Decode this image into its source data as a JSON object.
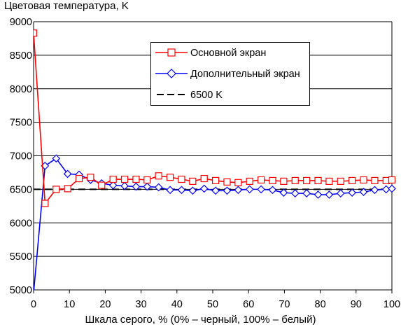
{
  "chart_data": {
    "type": "line",
    "title": "Цветовая температура, K",
    "xlabel": "Шкала серого, % (0% – черный, 100% – белый)",
    "ylabel": "",
    "xlim": [
      0,
      100
    ],
    "ylim": [
      5000,
      9000
    ],
    "x_ticks": [
      "0",
      "10",
      "20",
      "30",
      "40",
      "50",
      "60",
      "70",
      "80",
      "90",
      "100"
    ],
    "y_ticks": [
      "5000",
      "5500",
      "6000",
      "6500",
      "7000",
      "7500",
      "8000",
      "8500",
      "9000"
    ],
    "grid": "horizontal",
    "legend_position": "top-right",
    "x": [
      0,
      3.2,
      6.3,
      9.5,
      12.7,
      15.9,
      19,
      22.2,
      25.4,
      28.6,
      31.7,
      34.9,
      38.1,
      41.3,
      44.4,
      47.6,
      50.8,
      54,
      57.1,
      60.3,
      63.5,
      66.7,
      69.8,
      73,
      76.2,
      79.4,
      82.5,
      85.7,
      88.9,
      92.1,
      95.2,
      98.4,
      100
    ],
    "series": [
      {
        "name": "Основной экран",
        "color": "#ff0000",
        "marker": "square",
        "values": [
          8830,
          6290,
          6500,
          6510,
          6660,
          6680,
          6560,
          6650,
          6650,
          6650,
          6640,
          6700,
          6680,
          6650,
          6620,
          6660,
          6630,
          6610,
          6600,
          6620,
          6640,
          6630,
          6620,
          6630,
          6630,
          6630,
          6620,
          6620,
          6630,
          6640,
          6630,
          6630,
          6640
        ]
      },
      {
        "name": "Дополнительный экран",
        "color": "#0000ff",
        "marker": "diamond",
        "values": [
          4950,
          6850,
          6960,
          6730,
          6720,
          6640,
          6590,
          6560,
          6550,
          6540,
          6540,
          6530,
          6490,
          6490,
          6480,
          6510,
          6480,
          6480,
          6490,
          6500,
          6500,
          6490,
          6450,
          6440,
          6440,
          6420,
          6420,
          6440,
          6450,
          6460,
          6490,
          6500,
          6510
        ]
      },
      {
        "name": "6500 K",
        "color": "#000000",
        "marker": "none",
        "dashed": true,
        "x": [
          0,
          100
        ],
        "values": [
          6500,
          6500
        ]
      }
    ]
  }
}
